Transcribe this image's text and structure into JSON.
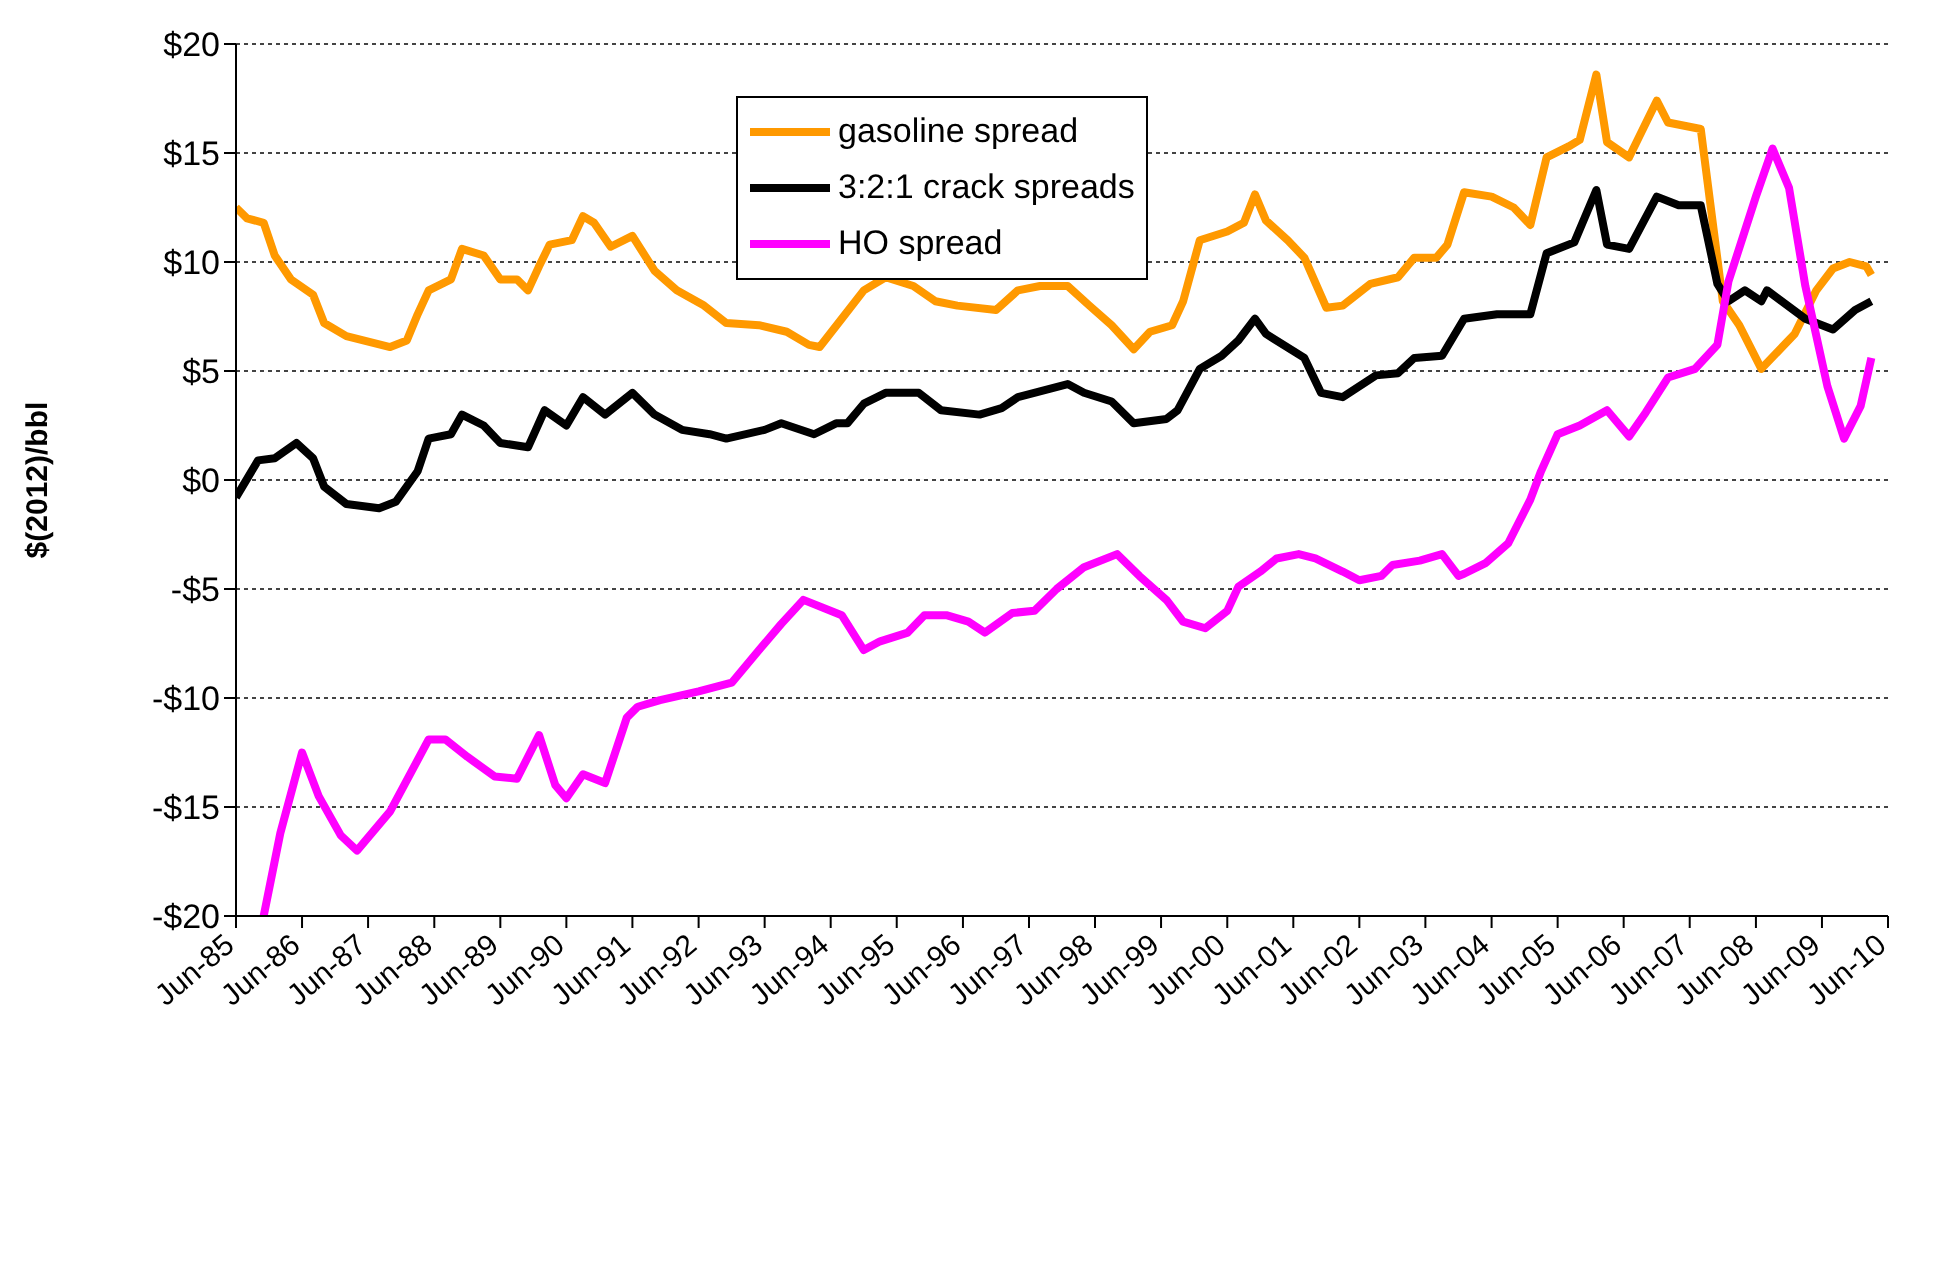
{
  "chart_data": {
    "type": "line",
    "ylabel": "$(2012)/bbl",
    "xlim": [
      "1985-06",
      "2010-06"
    ],
    "ylim": [
      -20,
      20
    ],
    "xticks": [
      {
        "value": "1985-06",
        "label": "Jun-85"
      },
      {
        "value": "1986-06",
        "label": "Jun-86"
      },
      {
        "value": "1987-06",
        "label": "Jun-87"
      },
      {
        "value": "1988-06",
        "label": "Jun-88"
      },
      {
        "value": "1989-06",
        "label": "Jun-89"
      },
      {
        "value": "1990-06",
        "label": "Jun-90"
      },
      {
        "value": "1991-06",
        "label": "Jun-91"
      },
      {
        "value": "1992-06",
        "label": "Jun-92"
      },
      {
        "value": "1993-06",
        "label": "Jun-93"
      },
      {
        "value": "1994-06",
        "label": "Jun-94"
      },
      {
        "value": "1995-06",
        "label": "Jun-95"
      },
      {
        "value": "1996-06",
        "label": "Jun-96"
      },
      {
        "value": "1997-06",
        "label": "Jun-97"
      },
      {
        "value": "1998-06",
        "label": "Jun-98"
      },
      {
        "value": "1999-06",
        "label": "Jun-99"
      },
      {
        "value": "2000-06",
        "label": "Jun-00"
      },
      {
        "value": "2001-06",
        "label": "Jun-01"
      },
      {
        "value": "2002-06",
        "label": "Jun-02"
      },
      {
        "value": "2003-06",
        "label": "Jun-03"
      },
      {
        "value": "2004-06",
        "label": "Jun-04"
      },
      {
        "value": "2005-06",
        "label": "Jun-05"
      },
      {
        "value": "2006-06",
        "label": "Jun-06"
      },
      {
        "value": "2007-06",
        "label": "Jun-07"
      },
      {
        "value": "2008-06",
        "label": "Jun-08"
      },
      {
        "value": "2009-06",
        "label": "Jun-09"
      },
      {
        "value": "2010-06",
        "label": "Jun-10"
      }
    ],
    "yticks": [
      {
        "value": -20,
        "label": "-$20"
      },
      {
        "value": -15,
        "label": "-$15"
      },
      {
        "value": -10,
        "label": "-$10"
      },
      {
        "value": -5,
        "label": "-$5"
      },
      {
        "value": 0,
        "label": "$0"
      },
      {
        "value": 5,
        "label": "$5"
      },
      {
        "value": 10,
        "label": "$10"
      },
      {
        "value": 15,
        "label": "$15"
      },
      {
        "value": 20,
        "label": "$20"
      }
    ],
    "grid": "y",
    "legend": "top",
    "marker": "none",
    "line_style": "solid",
    "series": [
      {
        "name": "gasoline spread",
        "color": "#ff9900",
        "x": [
          "1985-06",
          "1985-08",
          "1985-11",
          "1986-01",
          "1986-04",
          "1986-08",
          "1986-10",
          "1987-02",
          "1987-10",
          "1988-01",
          "1988-03",
          "1988-05",
          "1988-09",
          "1988-11",
          "1989-03",
          "1989-06",
          "1989-09",
          "1989-11",
          "1990-01",
          "1990-03",
          "1990-07",
          "1990-09",
          "1990-11",
          "1991-02",
          "1991-06",
          "1991-10",
          "1992-02",
          "1992-07",
          "1992-11",
          "1993-05",
          "1993-10",
          "1994-02",
          "1994-04",
          "1994-08",
          "1994-12",
          "1995-04",
          "1995-09",
          "1996-01",
          "1996-05",
          "1996-12",
          "1997-04",
          "1997-08",
          "1998-01",
          "1998-05",
          "1998-09",
          "1999-01",
          "1999-04",
          "1999-08",
          "1999-10",
          "2000-01",
          "2000-06",
          "2000-09",
          "2000-11",
          "2001-01",
          "2001-05",
          "2001-08",
          "2001-12",
          "2002-03",
          "2002-08",
          "2003-01",
          "2003-04",
          "2003-08",
          "2003-10",
          "2004-01",
          "2004-06",
          "2004-10",
          "2005-01",
          "2005-04",
          "2005-08",
          "2005-10",
          "2006-01",
          "2006-03",
          "2006-07",
          "2006-12",
          "2007-02",
          "2007-08",
          "2007-12",
          "2008-03",
          "2008-07",
          "2009-01",
          "2009-05",
          "2009-08",
          "2009-11",
          "2010-02",
          "2010-03"
        ],
        "values": [
          12.5,
          12.0,
          11.8,
          10.3,
          9.2,
          8.5,
          7.2,
          6.6,
          6.1,
          6.4,
          7.6,
          8.7,
          9.2,
          10.6,
          10.3,
          9.2,
          9.2,
          8.7,
          9.8,
          10.8,
          11.0,
          12.1,
          11.8,
          10.7,
          11.2,
          9.6,
          8.7,
          8.0,
          7.2,
          7.1,
          6.8,
          6.2,
          6.1,
          7.4,
          8.7,
          9.3,
          8.9,
          8.2,
          8.0,
          7.8,
          8.7,
          8.9,
          8.9,
          8.0,
          7.1,
          6.0,
          6.8,
          7.1,
          8.2,
          11.0,
          11.4,
          11.8,
          13.1,
          11.9,
          11.0,
          10.2,
          7.9,
          8.0,
          9.0,
          9.3,
          10.2,
          10.2,
          10.8,
          13.2,
          13.0,
          12.5,
          11.7,
          14.8,
          15.3,
          15.6,
          18.6,
          15.5,
          14.8,
          17.4,
          16.4,
          16.1,
          8.2,
          7.1,
          5.1,
          6.7,
          8.7,
          9.7,
          10.0,
          9.8,
          9.4
        ]
      },
      {
        "name": "3:2:1 crack spreads",
        "color": "#000000",
        "x": [
          "1985-06",
          "1985-10",
          "1986-01",
          "1986-05",
          "1986-08",
          "1986-10",
          "1987-02",
          "1987-08",
          "1987-11",
          "1988-03",
          "1988-05",
          "1988-09",
          "1988-11",
          "1989-03",
          "1989-06",
          "1989-11",
          "1990-02",
          "1990-06",
          "1990-09",
          "1991-01",
          "1991-06",
          "1991-10",
          "1992-03",
          "1992-08",
          "1992-11",
          "1993-06",
          "1993-09",
          "1994-03",
          "1994-07",
          "1994-09",
          "1994-12",
          "1995-04",
          "1995-10",
          "1996-02",
          "1996-09",
          "1997-01",
          "1997-04",
          "1998-01",
          "1998-04",
          "1998-09",
          "1999-01",
          "1999-07",
          "1999-09",
          "2000-01",
          "2000-05",
          "2000-08",
          "2000-11",
          "2001-01",
          "2001-08",
          "2001-11",
          "2002-03",
          "2002-09",
          "2003-01",
          "2003-04",
          "2003-09",
          "2004-01",
          "2004-07",
          "2005-01",
          "2005-04",
          "2005-09",
          "2006-01",
          "2006-03",
          "2006-07",
          "2006-12",
          "2007-04",
          "2007-08",
          "2007-11",
          "2008-01",
          "2008-04",
          "2008-07",
          "2008-08",
          "2009-03",
          "2009-08",
          "2009-12",
          "2010-03"
        ],
        "values": [
          -0.8,
          0.9,
          1.0,
          1.7,
          1.0,
          -0.3,
          -1.1,
          -1.3,
          -1.0,
          0.4,
          1.9,
          2.1,
          3.0,
          2.5,
          1.7,
          1.5,
          3.2,
          2.5,
          3.8,
          3.0,
          4.0,
          3.0,
          2.3,
          2.1,
          1.9,
          2.3,
          2.6,
          2.1,
          2.6,
          2.6,
          3.5,
          4.0,
          4.0,
          3.2,
          3.0,
          3.3,
          3.8,
          4.4,
          4.0,
          3.6,
          2.6,
          2.8,
          3.2,
          5.1,
          5.7,
          6.4,
          7.4,
          6.7,
          5.6,
          4.0,
          3.8,
          4.8,
          4.9,
          5.6,
          5.7,
          7.4,
          7.6,
          7.6,
          10.4,
          10.9,
          13.3,
          10.8,
          10.6,
          13.0,
          12.6,
          12.6,
          9.0,
          8.2,
          8.7,
          8.2,
          8.7,
          7.4,
          6.9,
          7.8,
          8.2
        ]
      },
      {
        "name": "HO spread",
        "color": "#ff00ff",
        "x": [
          "1985-11",
          "1986-02",
          "1986-06",
          "1986-09",
          "1987-01",
          "1987-04",
          "1987-10",
          "1988-05",
          "1988-08",
          "1988-12",
          "1989-05",
          "1989-09",
          "1990-01",
          "1990-04",
          "1990-06",
          "1990-09",
          "1991-01",
          "1991-05",
          "1991-07",
          "1991-11",
          "1992-06",
          "1992-12",
          "1993-05",
          "1993-09",
          "1994-01",
          "1994-08",
          "1994-12",
          "1995-03",
          "1995-08",
          "1995-11",
          "1996-03",
          "1996-07",
          "1996-10",
          "1997-03",
          "1997-07",
          "1997-11",
          "1998-04",
          "1998-10",
          "1999-02",
          "1999-07",
          "1999-10",
          "2000-02",
          "2000-06",
          "2000-08",
          "2000-12",
          "2001-03",
          "2001-07",
          "2001-10",
          "2002-03",
          "2002-06",
          "2002-10",
          "2002-12",
          "2003-05",
          "2003-09",
          "2003-12",
          "2004-01",
          "2004-05",
          "2004-09",
          "2005-01",
          "2005-03",
          "2005-06",
          "2005-10",
          "2006-03",
          "2006-07",
          "2006-10",
          "2007-02",
          "2007-07",
          "2007-11",
          "2008-01",
          "2008-06",
          "2008-09",
          "2008-12",
          "2009-03",
          "2009-07",
          "2009-10",
          "2010-01",
          "2010-03"
        ],
        "values": [
          -20.0,
          -16.2,
          -12.5,
          -14.5,
          -16.3,
          -17.0,
          -15.2,
          -11.9,
          -11.9,
          -12.7,
          -13.6,
          -13.7,
          -11.7,
          -14.0,
          -14.6,
          -13.5,
          -13.9,
          -10.9,
          -10.4,
          -10.1,
          -9.7,
          -9.3,
          -7.8,
          -6.6,
          -5.5,
          -6.2,
          -7.8,
          -7.4,
          -7.0,
          -6.2,
          -6.2,
          -6.5,
          -7.0,
          -6.1,
          -6.0,
          -5.0,
          -4.0,
          -3.4,
          -4.4,
          -5.5,
          -6.5,
          -6.8,
          -6.0,
          -4.9,
          -4.2,
          -3.6,
          -3.4,
          -3.6,
          -4.2,
          -4.6,
          -4.4,
          -3.9,
          -3.7,
          -3.4,
          -4.4,
          -4.3,
          -3.8,
          -2.9,
          -0.9,
          0.4,
          2.1,
          2.5,
          3.2,
          2.0,
          3.1,
          4.7,
          5.1,
          6.2,
          9.1,
          13.0,
          15.2,
          13.4,
          8.9,
          4.3,
          1.9,
          3.4,
          5.6
        ]
      }
    ]
  }
}
